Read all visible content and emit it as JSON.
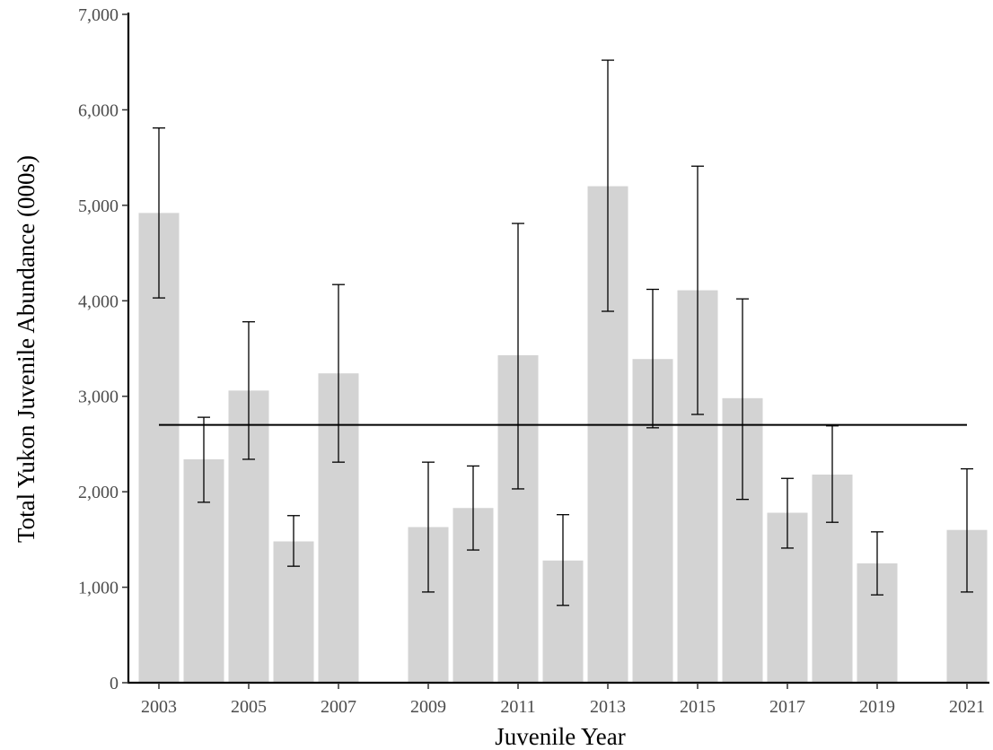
{
  "chart_data": {
    "type": "bar",
    "xlabel": "Juvenile Year",
    "ylabel": "Total Yukon Juvenile Abundance (000s)",
    "ylim": [
      0,
      7000
    ],
    "y_ticks": [
      0,
      1000,
      2000,
      3000,
      4000,
      5000,
      6000,
      7000
    ],
    "y_tick_labels": [
      "0",
      "1,000",
      "2,000",
      "3,000",
      "4,000",
      "5,000",
      "6,000",
      "7,000"
    ],
    "xlim": [
      2003,
      2021
    ],
    "x_ticks": [
      2003,
      2005,
      2007,
      2009,
      2011,
      2013,
      2015,
      2017,
      2019,
      2021
    ],
    "x_tick_labels": [
      "2003",
      "2005",
      "2007",
      "2009",
      "2011",
      "2013",
      "2015",
      "2017",
      "2019",
      "2021"
    ],
    "grid": false,
    "bar_color": "#d3d3d3",
    "bars": [
      {
        "year": 2003,
        "value": 4920,
        "lower": 4030,
        "upper": 5810
      },
      {
        "year": 2004,
        "value": 2340,
        "lower": 1890,
        "upper": 2780
      },
      {
        "year": 2005,
        "value": 3060,
        "lower": 2340,
        "upper": 3780
      },
      {
        "year": 2006,
        "value": 1480,
        "lower": 1220,
        "upper": 1750
      },
      {
        "year": 2007,
        "value": 3240,
        "lower": 2310,
        "upper": 4170
      },
      {
        "year": 2009,
        "value": 1630,
        "lower": 950,
        "upper": 2310
      },
      {
        "year": 2010,
        "value": 1830,
        "lower": 1390,
        "upper": 2270
      },
      {
        "year": 2011,
        "value": 3430,
        "lower": 2030,
        "upper": 4810
      },
      {
        "year": 2012,
        "value": 1280,
        "lower": 810,
        "upper": 1760
      },
      {
        "year": 2013,
        "value": 5200,
        "lower": 3890,
        "upper": 6520
      },
      {
        "year": 2014,
        "value": 3390,
        "lower": 2670,
        "upper": 4120
      },
      {
        "year": 2015,
        "value": 4110,
        "lower": 2810,
        "upper": 5410
      },
      {
        "year": 2016,
        "value": 2980,
        "lower": 1920,
        "upper": 4020
      },
      {
        "year": 2017,
        "value": 1780,
        "lower": 1410,
        "upper": 2140
      },
      {
        "year": 2018,
        "value": 2180,
        "lower": 1680,
        "upper": 2690
      },
      {
        "year": 2019,
        "value": 1250,
        "lower": 920,
        "upper": 1580
      },
      {
        "year": 2021,
        "value": 1600,
        "lower": 950,
        "upper": 2240
      }
    ],
    "reference_line": {
      "value": 2700,
      "from_year": 2003,
      "to_year": 2021
    }
  }
}
